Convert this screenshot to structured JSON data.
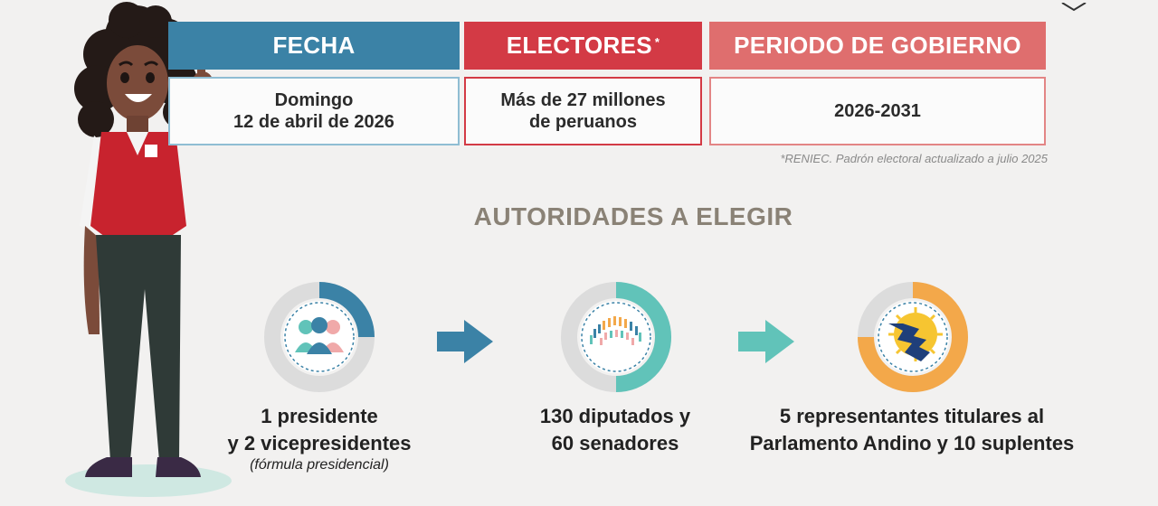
{
  "header": {
    "fecha": {
      "title": "FECHA",
      "line1": "Domingo",
      "line2": "12 de abril de 2026"
    },
    "electores": {
      "title": "ELECTORES",
      "mark": "*",
      "line1": "Más de 27 millones",
      "line2": "de peruanos"
    },
    "periodo": {
      "title": "PERIODO DE GOBIERNO",
      "value": "2026-2031"
    }
  },
  "footnote": "*RENIEC. Padrón electoral actualizado a julio 2025",
  "section_title": "AUTORIDADES A ELEGIR",
  "authorities": [
    {
      "icon": "people-icon",
      "line1": "1 presidente",
      "line2": "y 2 vicepresidentes",
      "note": "(fórmula presidencial)"
    },
    {
      "icon": "congress-seats-icon",
      "line1": "130 diputados y",
      "line2": "60 senadores"
    },
    {
      "icon": "andean-parliament-logo-icon",
      "line1": "5 representantes titulares al",
      "line2": "Parlamento Andino y 10 suplentes"
    }
  ],
  "colors": {
    "fecha": "#3b82a6",
    "electores": "#d33a45",
    "periodo": "#df6e6e",
    "teal": "#61c3b9",
    "orange": "#f3a84a",
    "title": "#8a8276"
  }
}
